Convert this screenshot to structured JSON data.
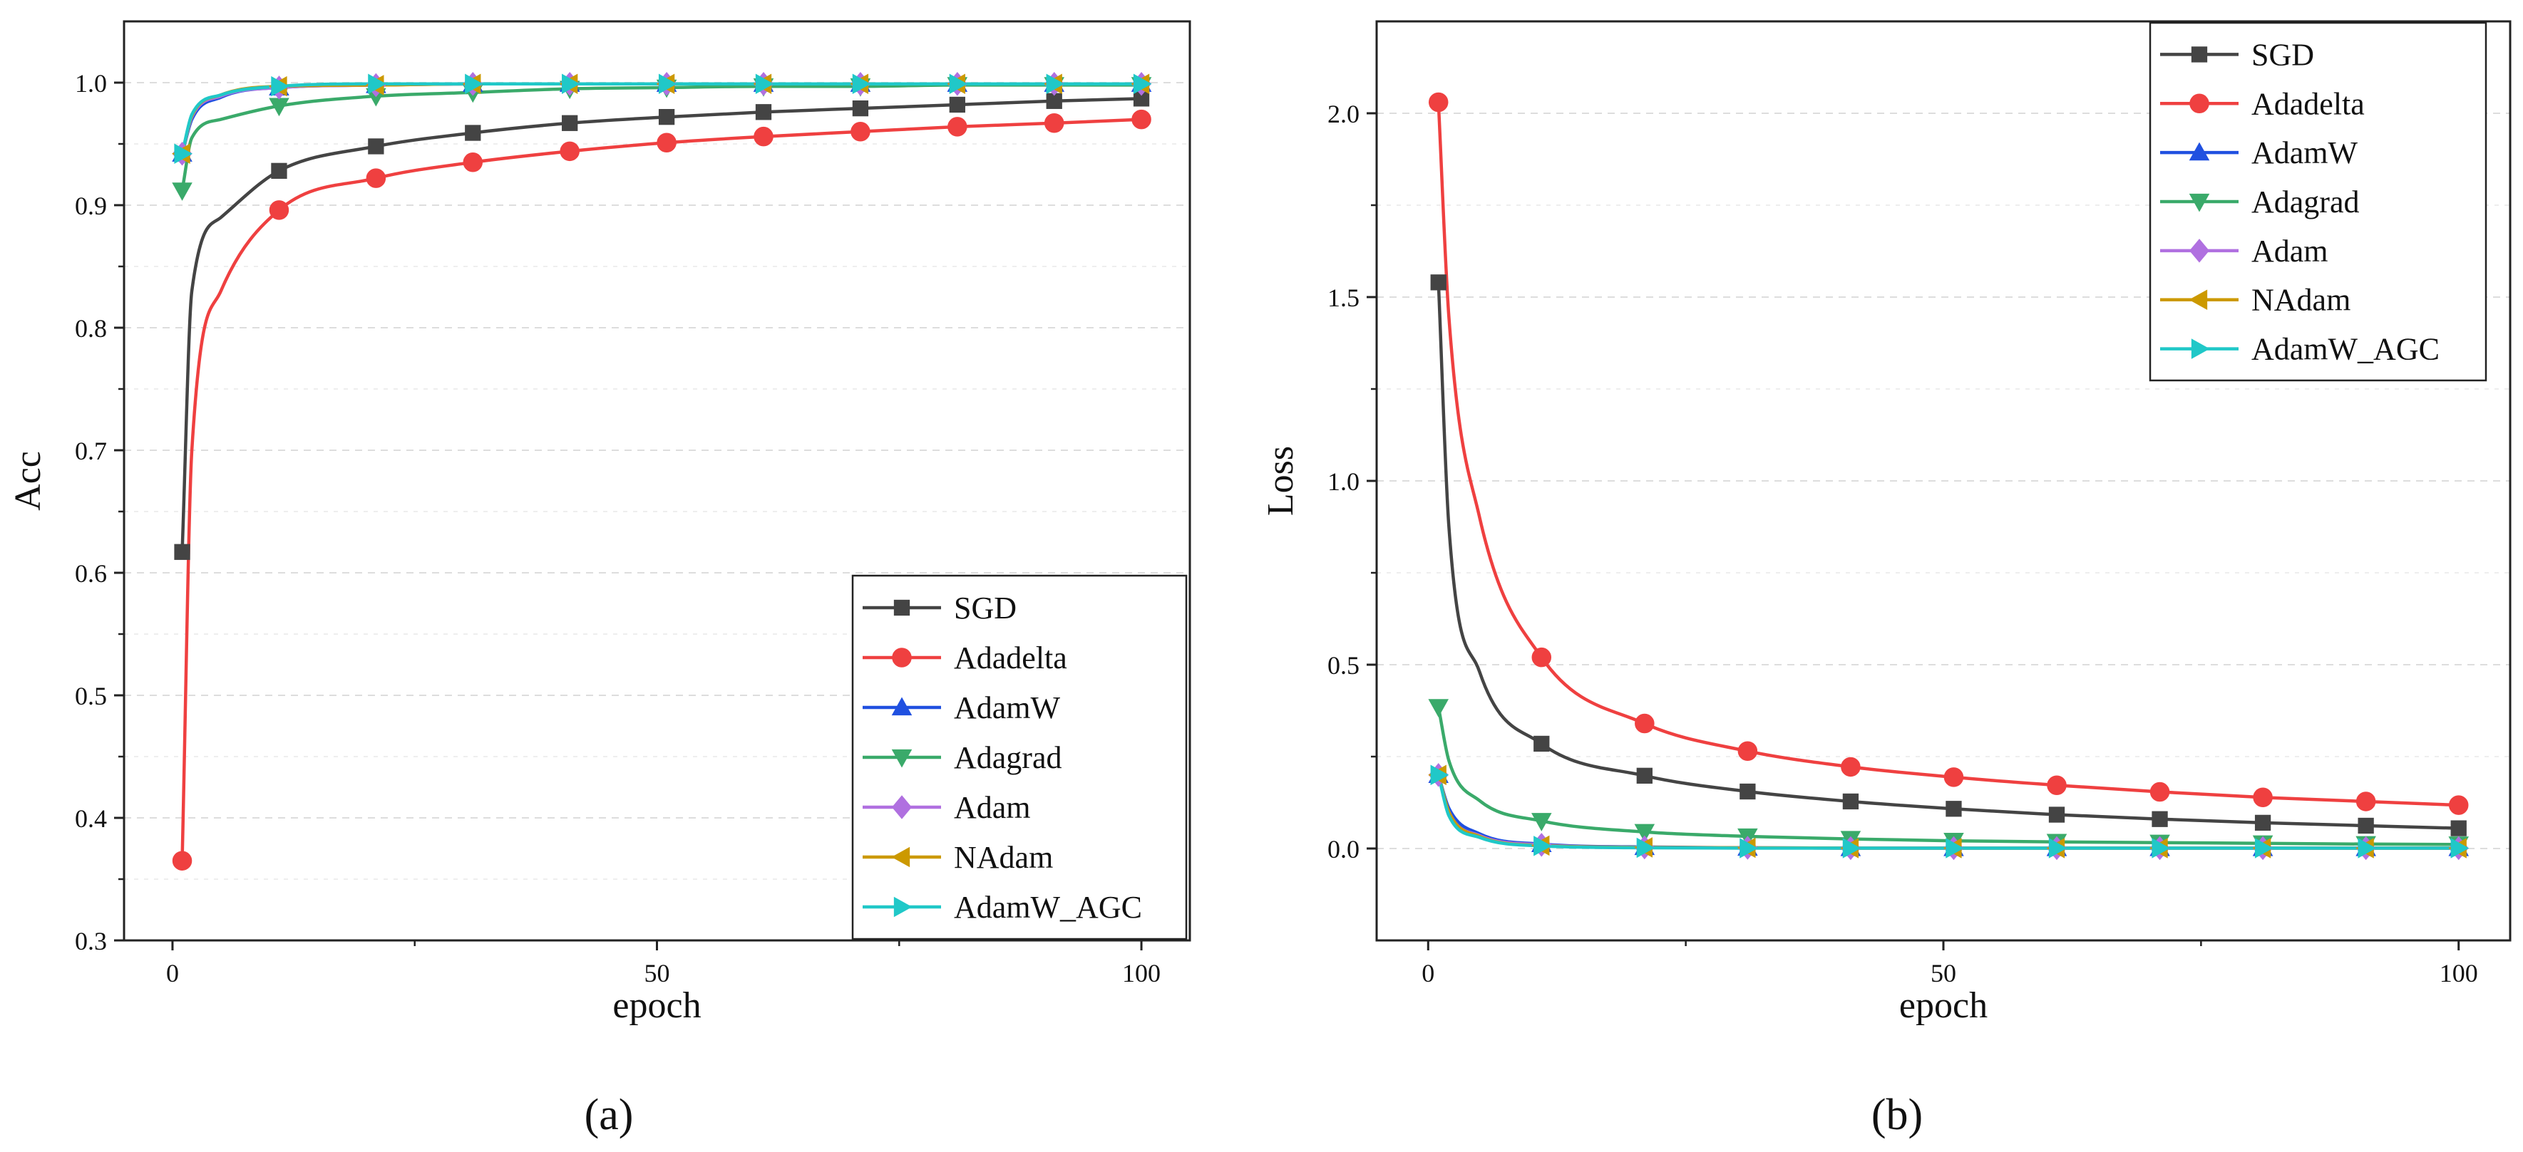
{
  "figure": {
    "panel_labels": [
      "(a)",
      "(b)"
    ]
  },
  "chart_data": [
    {
      "type": "line",
      "panel": "(a)",
      "xlabel": "epoch",
      "ylabel": "Acc",
      "xlim": [
        -5,
        105
      ],
      "ylim": [
        0.3,
        1.05
      ],
      "xticks": [
        0,
        50,
        100
      ],
      "yticks": [
        0.3,
        0.4,
        0.5,
        0.6,
        0.7,
        0.8,
        0.9,
        1.0
      ],
      "ytick_labels": [
        "0.3",
        "0.4",
        "0.5",
        "0.6",
        "0.7",
        "0.8",
        "0.9",
        "1.0"
      ],
      "grid": "horizontal dashed",
      "legend_position": "bottom-right",
      "x": [
        1,
        2,
        5,
        11,
        21,
        31,
        41,
        51,
        61,
        71,
        81,
        91,
        100
      ],
      "marker_x": [
        1,
        11,
        21,
        31,
        41,
        51,
        61,
        71,
        81,
        91,
        100
      ],
      "series": [
        {
          "name": "SGD",
          "color": "#444444",
          "marker": "square",
          "values": [
            0.617,
            0.83,
            0.89,
            0.928,
            0.948,
            0.959,
            0.967,
            0.972,
            0.976,
            0.979,
            0.982,
            0.985,
            0.987
          ]
        },
        {
          "name": "Adadelta",
          "color": "#ef4040",
          "marker": "circle",
          "values": [
            0.365,
            0.7,
            0.83,
            0.896,
            0.922,
            0.935,
            0.944,
            0.951,
            0.956,
            0.96,
            0.964,
            0.967,
            0.97
          ]
        },
        {
          "name": "AdamW",
          "color": "#2050e0",
          "marker": "triangle-up",
          "values": [
            0.942,
            0.97,
            0.988,
            0.996,
            0.998,
            0.999,
            0.999,
            0.999,
            0.999,
            0.999,
            0.999,
            0.999,
            0.999
          ]
        },
        {
          "name": "Adagrad",
          "color": "#3aaa6a",
          "marker": "triangle-down",
          "values": [
            0.912,
            0.955,
            0.97,
            0.981,
            0.989,
            0.992,
            0.995,
            0.996,
            0.997,
            0.997,
            0.998,
            0.998,
            0.998
          ]
        },
        {
          "name": "Adam",
          "color": "#b070e0",
          "marker": "diamond",
          "values": [
            0.942,
            0.972,
            0.989,
            0.996,
            0.998,
            0.999,
            0.999,
            0.999,
            0.999,
            0.999,
            0.999,
            0.999,
            0.999
          ]
        },
        {
          "name": "NAdam",
          "color": "#cc9900",
          "marker": "triangle-left",
          "values": [
            0.942,
            0.973,
            0.99,
            0.997,
            0.998,
            0.999,
            0.999,
            0.999,
            0.999,
            0.999,
            0.999,
            0.999,
            0.999
          ]
        },
        {
          "name": "AdamW_AGC",
          "color": "#20c8c8",
          "marker": "triangle-right",
          "values": [
            0.942,
            0.974,
            0.99,
            0.997,
            0.999,
            0.999,
            0.999,
            0.999,
            0.999,
            0.999,
            0.999,
            0.999,
            0.999
          ]
        }
      ]
    },
    {
      "type": "line",
      "panel": "(b)",
      "xlabel": "epoch",
      "ylabel": "Loss",
      "xlim": [
        -5,
        105
      ],
      "ylim": [
        -0.25,
        2.25
      ],
      "xticks": [
        0,
        50,
        100
      ],
      "yticks": [
        0.0,
        0.5,
        1.0,
        1.5,
        2.0
      ],
      "ytick_labels": [
        "0.0",
        "0.5",
        "1.0",
        "1.5",
        "2.0"
      ],
      "grid": "horizontal dashed",
      "legend_position": "top-right",
      "x": [
        1,
        2,
        5,
        11,
        21,
        31,
        41,
        51,
        61,
        71,
        81,
        91,
        100
      ],
      "marker_x": [
        1,
        11,
        21,
        31,
        41,
        51,
        61,
        71,
        81,
        91,
        100
      ],
      "series": [
        {
          "name": "SGD",
          "color": "#444444",
          "marker": "square",
          "values": [
            1.54,
            0.88,
            0.48,
            0.285,
            0.198,
            0.155,
            0.128,
            0.108,
            0.092,
            0.08,
            0.07,
            0.062,
            0.055
          ]
        },
        {
          "name": "Adadelta",
          "color": "#ef4040",
          "marker": "circle",
          "values": [
            2.03,
            1.45,
            0.9,
            0.52,
            0.34,
            0.265,
            0.222,
            0.194,
            0.172,
            0.154,
            0.139,
            0.128,
            0.118
          ]
        },
        {
          "name": "AdamW",
          "color": "#2050e0",
          "marker": "triangle-up",
          "values": [
            0.2,
            0.11,
            0.04,
            0.012,
            0.004,
            0.002,
            0.001,
            0.001,
            0.001,
            0.001,
            0.001,
            0.001,
            0.001
          ]
        },
        {
          "name": "Adagrad",
          "color": "#3aaa6a",
          "marker": "triangle-down",
          "values": [
            0.385,
            0.24,
            0.13,
            0.075,
            0.045,
            0.033,
            0.026,
            0.021,
            0.018,
            0.016,
            0.014,
            0.012,
            0.011
          ]
        },
        {
          "name": "Adam",
          "color": "#b070e0",
          "marker": "diamond",
          "values": [
            0.2,
            0.1,
            0.035,
            0.01,
            0.003,
            0.002,
            0.001,
            0.001,
            0.001,
            0.001,
            0.001,
            0.001,
            0.001
          ]
        },
        {
          "name": "NAdam",
          "color": "#cc9900",
          "marker": "triangle-left",
          "values": [
            0.2,
            0.1,
            0.033,
            0.008,
            0.003,
            0.002,
            0.001,
            0.001,
            0.001,
            0.001,
            0.001,
            0.001,
            0.001
          ]
        },
        {
          "name": "AdamW_AGC",
          "color": "#20c8c8",
          "marker": "triangle-right",
          "values": [
            0.2,
            0.09,
            0.03,
            0.007,
            0.002,
            0.001,
            0.001,
            0.001,
            0.001,
            0.001,
            0.001,
            0.001,
            0.001
          ]
        }
      ]
    }
  ]
}
